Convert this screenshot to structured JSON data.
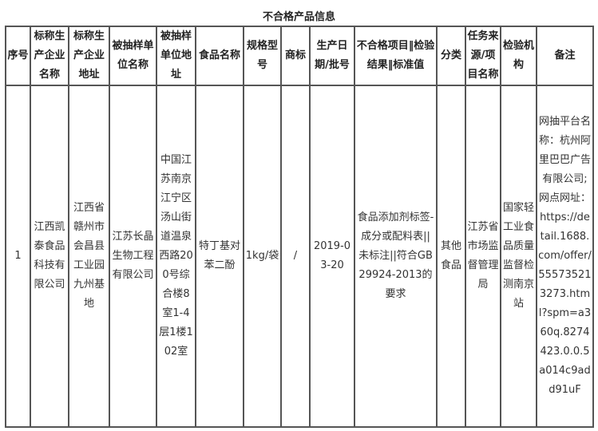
{
  "title": "不合格产品信息",
  "columns": [
    "序号",
    "标称生产企业名称",
    "标称生产企业地址",
    "被抽样单位名称",
    "被抽样单位地址",
    "食品名称",
    "规格型号",
    "商标",
    "生产日期/批号",
    "不合格项目‖检验结果‖标准值",
    "分类",
    "任务来源/项目名称",
    "检验机构",
    "备注"
  ],
  "rows": [
    [
      "1",
      "江西凯泰食品科技有限公司",
      "江西省赣州市会昌县工业园九州基地",
      "江苏长晶生物工程有限公司",
      "中国江苏南京江宁区汤山街道温泉西路200号综合楼8室1-4层1楼102室",
      "特丁基对苯二酚",
      "1kg/袋",
      "/",
      "2019-03-20",
      "食品添加剂标签-成分或配料表||未标注||符合GB29924-2013的要求",
      "其他食品",
      "江苏省市场监督管理局",
      "国家轻工业食品质量监督检测南京站",
      "网抽平台名称：杭州阿里巴巴广告有限公司;网点网址：https://detail.1688.com/offer/555735213273.html?spm=a360q.8274423.0.0.5a014c9add91uF"
    ]
  ]
}
